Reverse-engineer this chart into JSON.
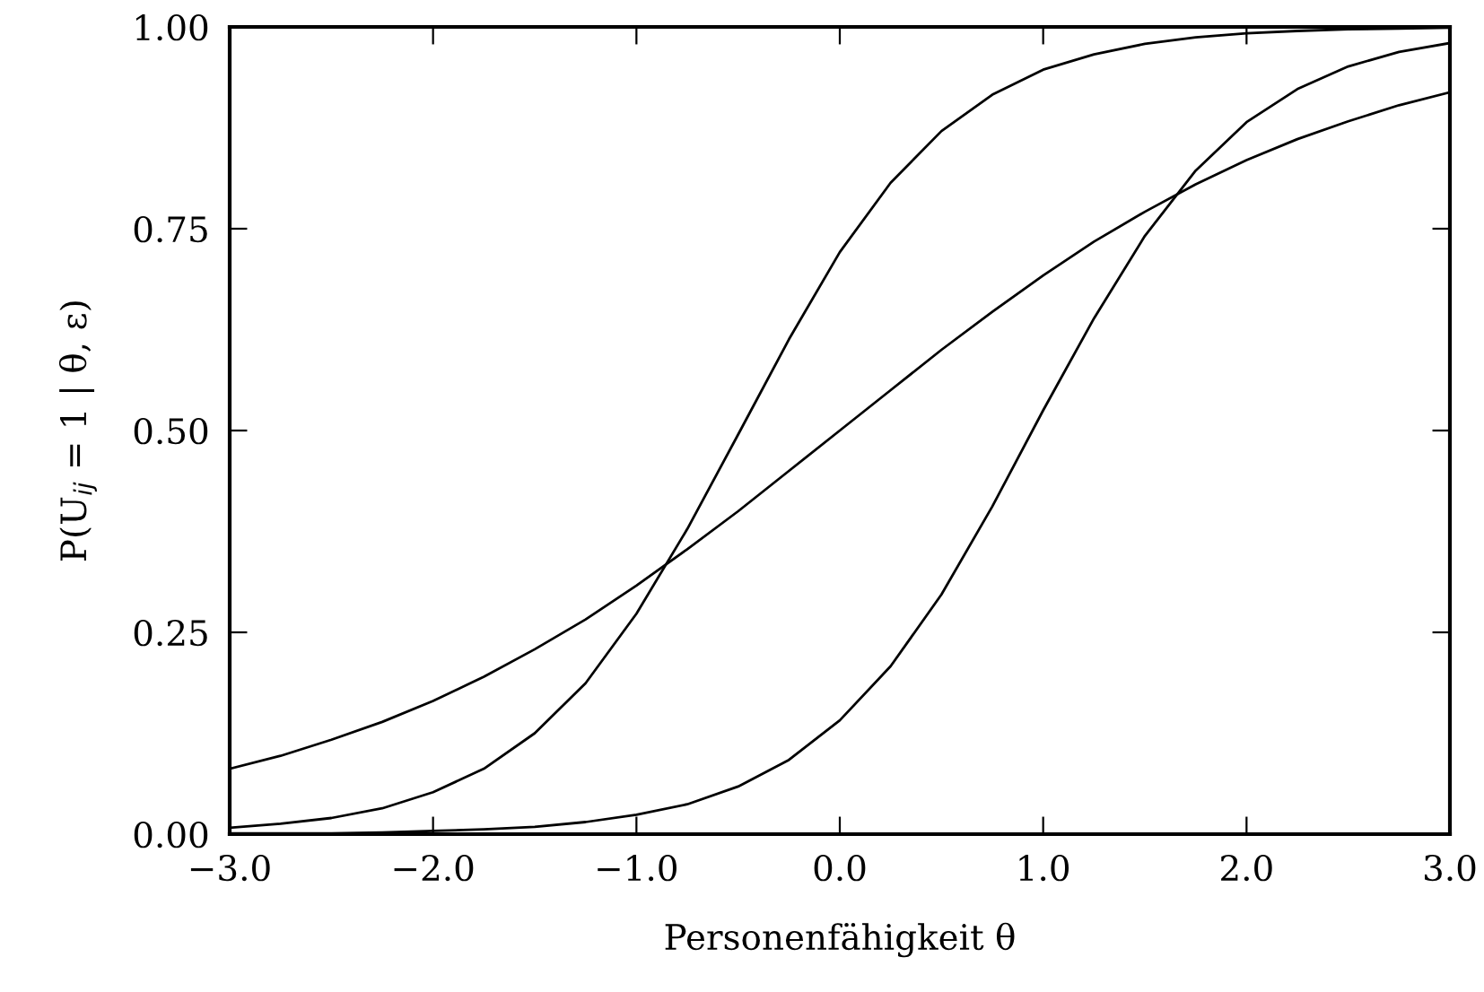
{
  "chart_data": {
    "type": "line",
    "xlabel": "Personenfähigkeit θ",
    "ylabel": "P(U$_{ij}$ = 1 | θ, ε)",
    "x": [
      -3,
      -2.75,
      -2.5,
      -2.25,
      -2,
      -1.75,
      -1.5,
      -1.25,
      -1,
      -0.75,
      -0.5,
      -0.25,
      0,
      0.25,
      0.5,
      0.75,
      1,
      1.25,
      1.5,
      1.75,
      2,
      2.25,
      2.5,
      2.75,
      3
    ],
    "series": [
      {
        "color": "#000000",
        "values": [
          0.081,
          0.097,
          0.117,
          0.139,
          0.165,
          0.195,
          0.229,
          0.266,
          0.308,
          0.353,
          0.4,
          0.45,
          0.5,
          0.55,
          0.6,
          0.647,
          0.692,
          0.734,
          0.771,
          0.805,
          0.835,
          0.861,
          0.883,
          0.903,
          0.919
        ]
      },
      {
        "color": "#000000",
        "values": [
          0.008,
          0.013,
          0.02,
          0.032,
          0.052,
          0.081,
          0.125,
          0.187,
          0.273,
          0.378,
          0.495,
          0.613,
          0.721,
          0.807,
          0.871,
          0.916,
          0.947,
          0.966,
          0.979,
          0.987,
          0.992,
          0.995,
          0.997,
          0.998,
          0.999
        ]
      },
      {
        "color": "#000000",
        "values": [
          0.001,
          0.001,
          0.001,
          0.002,
          0.004,
          0.006,
          0.009,
          0.015,
          0.024,
          0.037,
          0.059,
          0.092,
          0.141,
          0.208,
          0.297,
          0.406,
          0.525,
          0.639,
          0.741,
          0.822,
          0.882,
          0.923,
          0.951,
          0.969,
          0.98
        ]
      }
    ],
    "xlim": [
      -3,
      3
    ],
    "ylim": [
      0,
      1
    ],
    "xticks": [
      {
        "value": -3,
        "label": "−3.0"
      },
      {
        "value": -2,
        "label": "−2.0"
      },
      {
        "value": -1,
        "label": "−1.0"
      },
      {
        "value": 0,
        "label": "0.0"
      },
      {
        "value": 1,
        "label": "1.0"
      },
      {
        "value": 2,
        "label": "2.0"
      },
      {
        "value": 3,
        "label": "3.0"
      }
    ],
    "yticks": [
      {
        "value": 0,
        "label": "0.00"
      },
      {
        "value": 0.25,
        "label": "0.25"
      },
      {
        "value": 0.5,
        "label": "0.50"
      },
      {
        "value": 0.75,
        "label": "0.75"
      },
      {
        "value": 1,
        "label": "1.00"
      }
    ],
    "grid": false,
    "legend": false,
    "marker": "none",
    "line_style": "solid"
  }
}
